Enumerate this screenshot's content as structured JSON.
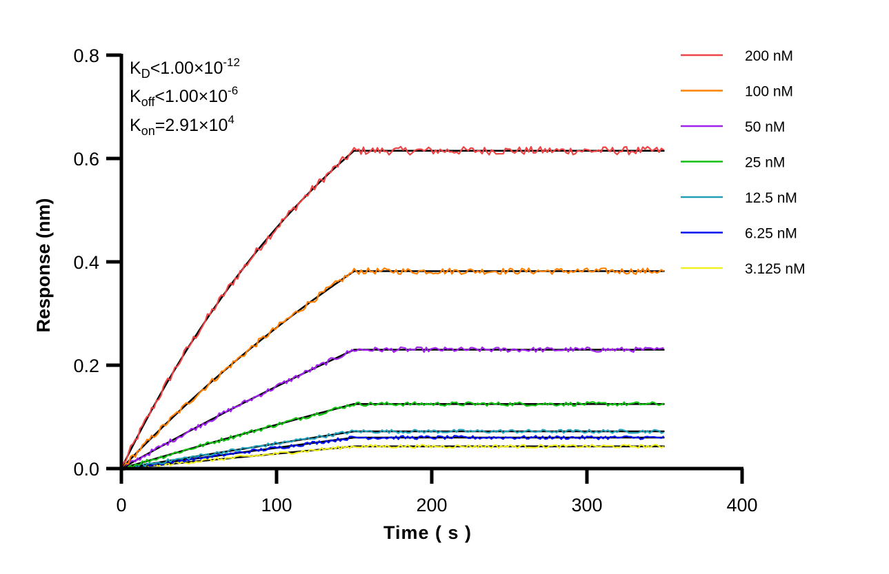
{
  "chart_data": {
    "type": "line",
    "xlabel": "Time ( s )",
    "ylabel": "Response (nm)",
    "xlim": [
      0,
      400
    ],
    "ylim": [
      0,
      0.8
    ],
    "xticks": [
      "0",
      "100",
      "200",
      "300",
      "400"
    ],
    "yticks": [
      "0.0",
      "0.2",
      "0.4",
      "0.6",
      "0.8"
    ],
    "xtick_values": [
      0,
      100,
      200,
      300,
      400
    ],
    "ytick_values": [
      0,
      0.2,
      0.4,
      0.6,
      0.8
    ],
    "grid": false,
    "legend_position": "top-right",
    "association_end": 150,
    "x_end": 350,
    "fit_color": "#000000",
    "annotations": {
      "kd": {
        "base": "K",
        "sub": "D",
        "text": "<1.00×10",
        "sup": "-12"
      },
      "koff": {
        "base": "K",
        "sub": "off",
        "text": "<1.00×10",
        "sup": "-6"
      },
      "kon": {
        "base": "K",
        "sub": "on",
        "text": "=2.91×10",
        "sup": "4"
      }
    },
    "kon_value": 29100,
    "series": [
      {
        "name": "200 nM",
        "conc_nM": 200,
        "plateau": 0.615,
        "color": "#f04444"
      },
      {
        "name": "100 nM",
        "conc_nM": 100,
        "plateau": 0.382,
        "color": "#ff8000"
      },
      {
        "name": "50 nM",
        "conc_nM": 50,
        "plateau": 0.23,
        "color": "#a020f0"
      },
      {
        "name": "25 nM",
        "conc_nM": 25,
        "plateau": 0.125,
        "color": "#10c010"
      },
      {
        "name": "12.5 nM",
        "conc_nM": 12.5,
        "plateau": 0.072,
        "color": "#20a0b8"
      },
      {
        "name": "6.25 nM",
        "conc_nM": 6.25,
        "plateau": 0.06,
        "color": "#0010f0"
      },
      {
        "name": "3.125 nM",
        "conc_nM": 3.125,
        "plateau": 0.043,
        "color": "#f0f020"
      }
    ]
  }
}
